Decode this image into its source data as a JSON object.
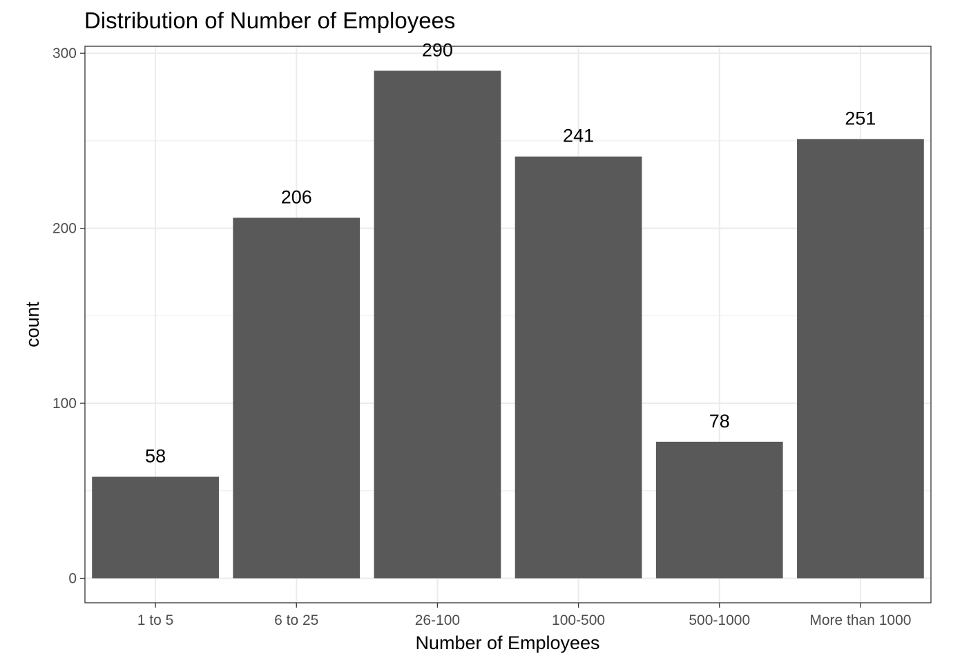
{
  "chart_data": {
    "type": "bar",
    "title": "Distribution of Number of Employees",
    "xlabel": "Number of Employees",
    "ylabel": "count",
    "categories": [
      "1 to 5",
      "6 to 25",
      "26-100",
      "100-500",
      "500-1000",
      "More than 1000"
    ],
    "values": [
      58,
      206,
      290,
      241,
      78,
      251
    ],
    "data_labels": [
      "58",
      "206",
      "290",
      "241",
      "78",
      "251"
    ],
    "y_ticks": [
      0,
      100,
      200,
      300
    ],
    "y_tick_labels": [
      "0",
      "100",
      "200",
      "300"
    ],
    "ylim": [
      -14,
      304
    ],
    "grid": true,
    "legend": "none",
    "colors": {
      "bar": "#595959",
      "grid": "#ebebeb",
      "panel_border": "#333333",
      "tick_text": "#4d4d4d",
      "text": "#000000"
    }
  }
}
